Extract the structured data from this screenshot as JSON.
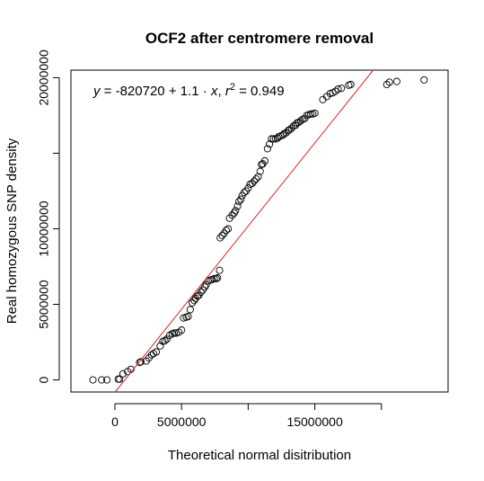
{
  "chart_data": {
    "type": "scatter",
    "title": "OCF2 after centromere removal",
    "xlabel": "Theoretical normal disitribution",
    "ylabel": "Real homozygous SNP density",
    "xlim": [
      -3300000,
      25000000
    ],
    "ylim": [
      -800000,
      20500000
    ],
    "x_ticks": [
      0,
      5000000,
      10000000,
      15000000,
      20000000
    ],
    "x_tick_labels": [
      "0",
      "5000000",
      "",
      "15000000",
      ""
    ],
    "y_ticks": [
      0,
      5000000,
      10000000,
      15000000,
      20000000
    ],
    "y_tick_labels": [
      "0",
      "5000000",
      "10000000",
      "",
      "20000000"
    ],
    "point_color": "#000000",
    "fit_color": "#e0242a",
    "annotation": {
      "y_var": "y",
      "equals": " = -820720",
      "plus": " + ",
      "slope": "1.1",
      "dot": " · ",
      "x_var": "x",
      "comma": ",  ",
      "r_var": "r",
      "r_exp": "2",
      "r_value": " = 0.949"
    },
    "fit": {
      "intercept": -820720,
      "slope": 1.1
    },
    "points": [
      [
        -1650000,
        0
      ],
      [
        -1000000,
        0
      ],
      [
        -600000,
        0
      ],
      [
        250000,
        50000
      ],
      [
        350000,
        50000
      ],
      [
        600000,
        400000
      ],
      [
        950000,
        550000
      ],
      [
        1200000,
        700000
      ],
      [
        1850000,
        1150000
      ],
      [
        1950000,
        1200000
      ],
      [
        2350000,
        1250000
      ],
      [
        2550000,
        1450000
      ],
      [
        2750000,
        1650000
      ],
      [
        2900000,
        1750000
      ],
      [
        3100000,
        1850000
      ],
      [
        3400000,
        2250000
      ],
      [
        3600000,
        2550000
      ],
      [
        3750000,
        2600000
      ],
      [
        3900000,
        2700000
      ],
      [
        4100000,
        2950000
      ],
      [
        4300000,
        3050000
      ],
      [
        4450000,
        3100000
      ],
      [
        4600000,
        3100000
      ],
      [
        4800000,
        3150000
      ],
      [
        5000000,
        3300000
      ],
      [
        5150000,
        4100000
      ],
      [
        5350000,
        4150000
      ],
      [
        5500000,
        4200000
      ],
      [
        5650000,
        4650000
      ],
      [
        5800000,
        5100000
      ],
      [
        5950000,
        5250000
      ],
      [
        6050000,
        5400000
      ],
      [
        6200000,
        5550000
      ],
      [
        6300000,
        5600000
      ],
      [
        6450000,
        5800000
      ],
      [
        6600000,
        5950000
      ],
      [
        6750000,
        6150000
      ],
      [
        6850000,
        6300000
      ],
      [
        7000000,
        6550000
      ],
      [
        7150000,
        6600000
      ],
      [
        7300000,
        6650000
      ],
      [
        7450000,
        6700000
      ],
      [
        7600000,
        6700000
      ],
      [
        7700000,
        6750000
      ],
      [
        7850000,
        7250000
      ],
      [
        7900000,
        9400000
      ],
      [
        8050000,
        9550000
      ],
      [
        8200000,
        9700000
      ],
      [
        8350000,
        9900000
      ],
      [
        8500000,
        10000000
      ],
      [
        8600000,
        10700000
      ],
      [
        8800000,
        10900000
      ],
      [
        8950000,
        11050000
      ],
      [
        9050000,
        11200000
      ],
      [
        9200000,
        11500000
      ],
      [
        9300000,
        11800000
      ],
      [
        9450000,
        11950000
      ],
      [
        9550000,
        12200000
      ],
      [
        9700000,
        12400000
      ],
      [
        9850000,
        12500000
      ],
      [
        10000000,
        12700000
      ],
      [
        10150000,
        12950000
      ],
      [
        10300000,
        13000000
      ],
      [
        10450000,
        13150000
      ],
      [
        10600000,
        13300000
      ],
      [
        10750000,
        13450000
      ],
      [
        10900000,
        13800000
      ],
      [
        11000000,
        14250000
      ],
      [
        11100000,
        14300000
      ],
      [
        11250000,
        14500000
      ],
      [
        11450000,
        15300000
      ],
      [
        11600000,
        15600000
      ],
      [
        11750000,
        15950000
      ],
      [
        11900000,
        15950000
      ],
      [
        12050000,
        15950000
      ],
      [
        12200000,
        16000000
      ],
      [
        12300000,
        16100000
      ],
      [
        12450000,
        16150000
      ],
      [
        12600000,
        16200000
      ],
      [
        12700000,
        16300000
      ],
      [
        12850000,
        16350000
      ],
      [
        13000000,
        16500000
      ],
      [
        13100000,
        16550000
      ],
      [
        13250000,
        16650000
      ],
      [
        13400000,
        16800000
      ],
      [
        13550000,
        16850000
      ],
      [
        13650000,
        17000000
      ],
      [
        13800000,
        17050000
      ],
      [
        13950000,
        17150000
      ],
      [
        14100000,
        17250000
      ],
      [
        14250000,
        17300000
      ],
      [
        14400000,
        17500000
      ],
      [
        14550000,
        17550000
      ],
      [
        14700000,
        17600000
      ],
      [
        14850000,
        17600000
      ],
      [
        15000000,
        17650000
      ],
      [
        15600000,
        18550000
      ],
      [
        15900000,
        18750000
      ],
      [
        16150000,
        18950000
      ],
      [
        16350000,
        19000000
      ],
      [
        16550000,
        19100000
      ],
      [
        16750000,
        19250000
      ],
      [
        17000000,
        19300000
      ],
      [
        17550000,
        19500000
      ],
      [
        17700000,
        19550000
      ],
      [
        20400000,
        19550000
      ],
      [
        20600000,
        19700000
      ],
      [
        21150000,
        19750000
      ],
      [
        23200000,
        19850000
      ]
    ]
  }
}
